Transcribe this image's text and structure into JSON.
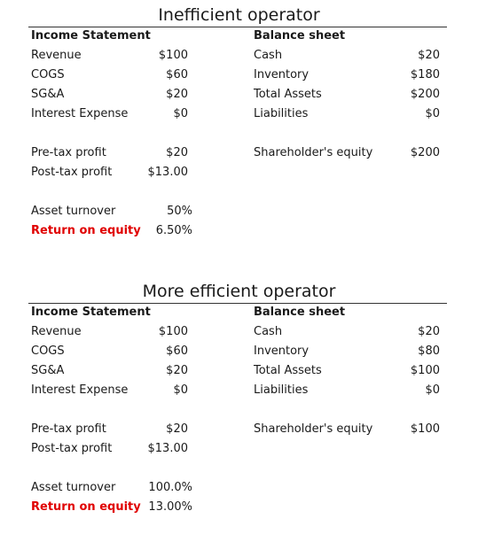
{
  "colors": {
    "highlight": "#e00000",
    "text": "#1a1a1a"
  },
  "panels": [
    {
      "title": "Inefficient operator",
      "income_header": "Income Statement",
      "balance_header": "Balance sheet",
      "income_rows": [
        {
          "label": "Revenue",
          "value": "$100"
        },
        {
          "label": "COGS",
          "value": "$60"
        },
        {
          "label": "SG&A",
          "value": "$20"
        },
        {
          "label": "Interest Expense",
          "value": "$0"
        }
      ],
      "balance_rows": [
        {
          "label": "Cash",
          "value": "$20"
        },
        {
          "label": "Inventory",
          "value": "$180"
        },
        {
          "label": "Total Assets",
          "value": "$200"
        },
        {
          "label": "Liabilities",
          "value": "$0"
        }
      ],
      "profit_rows": [
        {
          "label": "Pre-tax profit",
          "value": "$20"
        },
        {
          "label": "Post-tax profit",
          "value": "$13.00"
        }
      ],
      "equity": {
        "label": "Shareholder's equity",
        "value": "$200"
      },
      "asset_turnover": {
        "label": "Asset turnover",
        "value": "50%"
      },
      "return_on_equity": {
        "label": "Return on equity",
        "value": "6.50%"
      }
    },
    {
      "title": "More efficient operator",
      "income_header": "Income Statement",
      "balance_header": "Balance sheet",
      "income_rows": [
        {
          "label": "Revenue",
          "value": "$100"
        },
        {
          "label": "COGS",
          "value": "$60"
        },
        {
          "label": "SG&A",
          "value": "$20"
        },
        {
          "label": "Interest Expense",
          "value": "$0"
        }
      ],
      "balance_rows": [
        {
          "label": "Cash",
          "value": "$20"
        },
        {
          "label": "Inventory",
          "value": "$80"
        },
        {
          "label": "Total Assets",
          "value": "$100"
        },
        {
          "label": "Liabilities",
          "value": "$0"
        }
      ],
      "profit_rows": [
        {
          "label": "Pre-tax profit",
          "value": "$20"
        },
        {
          "label": "Post-tax profit",
          "value": "$13.00"
        }
      ],
      "equity": {
        "label": "Shareholder's equity",
        "value": "$100"
      },
      "asset_turnover": {
        "label": "Asset turnover",
        "value": "100.0%"
      },
      "return_on_equity": {
        "label": "Return on equity",
        "value": "13.00%"
      }
    }
  ]
}
